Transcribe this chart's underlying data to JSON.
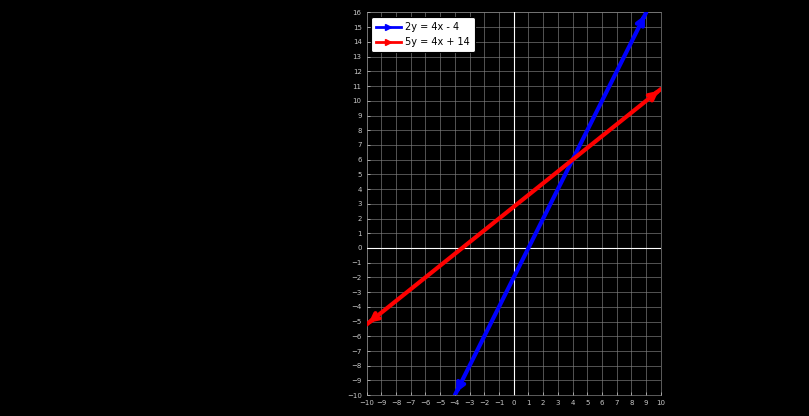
{
  "title": "",
  "line1_label": "2y = 4x - 4",
  "line2_label": "5y = 4x + 14",
  "line1_color": "#0000ff",
  "line2_color": "#ff0000",
  "line1_slope": 2.0,
  "line1_intercept": -2.0,
  "line2_slope": 0.8,
  "line2_intercept": 2.8,
  "xlim": [
    -10,
    10
  ],
  "ylim": [
    -10,
    16
  ],
  "xticks": [
    -10,
    -9,
    -8,
    -7,
    -6,
    -5,
    -4,
    -3,
    -2,
    -1,
    0,
    1,
    2,
    3,
    4,
    5,
    6,
    7,
    8,
    9,
    10
  ],
  "yticks": [
    -10,
    -9,
    -8,
    -7,
    -6,
    -5,
    -4,
    -3,
    -2,
    -1,
    0,
    1,
    2,
    3,
    4,
    5,
    6,
    7,
    8,
    9,
    10,
    11,
    12,
    13,
    14,
    15,
    16
  ],
  "background_color": "#000000",
  "plot_bg_color": "#000000",
  "grid_color": "#808080",
  "tick_color": "#c8c8c8",
  "axis_color": "#ffffff",
  "legend_bg": "#ffffff",
  "linewidth": 3.0,
  "figwidth": 8.09,
  "figheight": 4.16,
  "dpi": 100
}
